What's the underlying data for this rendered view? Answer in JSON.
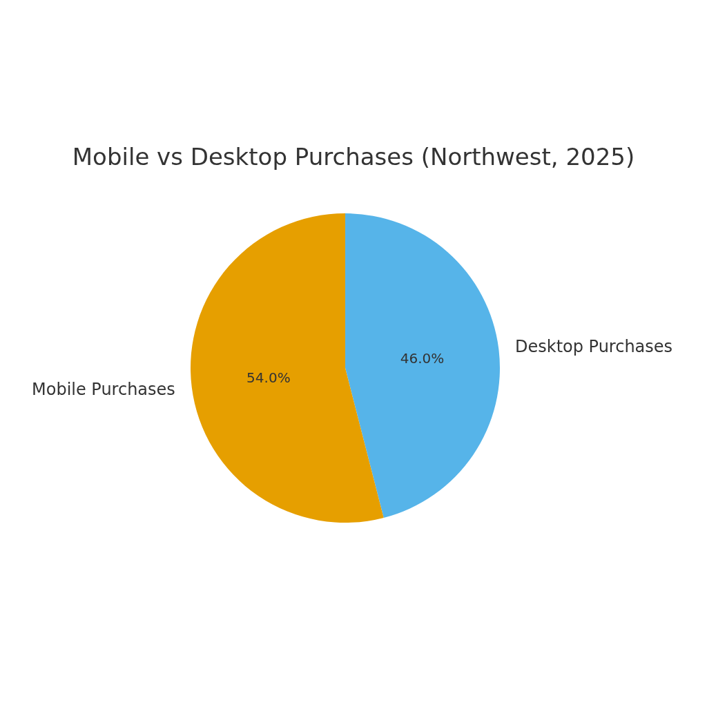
{
  "chart_data": {
    "type": "pie",
    "title": "Mobile vs Desktop Purchases (Northwest, 2025)",
    "categories": [
      "Desktop Purchases",
      "Mobile Purchases"
    ],
    "values": [
      46.0,
      54.0
    ],
    "colors": [
      "#56b4e9",
      "#e69f00"
    ],
    "value_labels": [
      "46.0%",
      "54.0%"
    ],
    "legend": false
  }
}
